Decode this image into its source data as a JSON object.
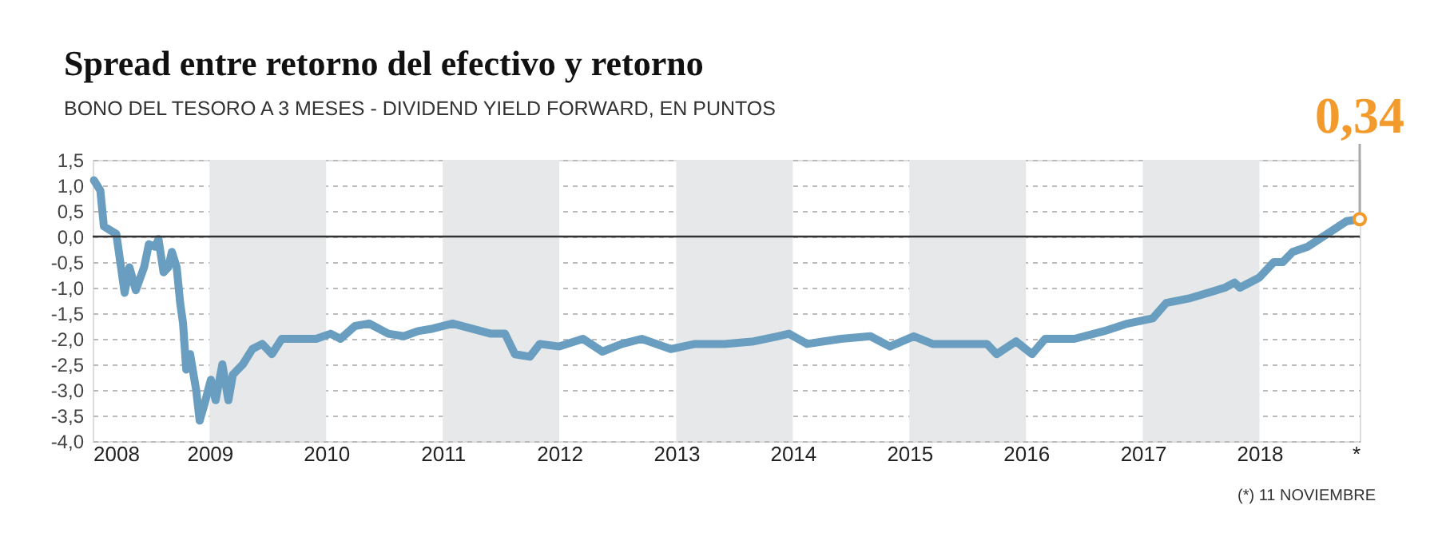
{
  "chart_data": {
    "type": "line",
    "title": "Spread entre retorno del efectivo y retorno",
    "subtitle": "BONO DEL TESORO A 3 MESES - DIVIDEND YIELD FORWARD, EN PUNTOS",
    "x": [
      "2008-01-05",
      "2008-01-25",
      "2008-02-05",
      "2008-03-15",
      "2008-04-10",
      "2008-04-25",
      "2008-05-15",
      "2008-06-10",
      "2008-06-25",
      "2008-07-15",
      "2008-07-25",
      "2008-08-10",
      "2008-08-25",
      "2008-09-05",
      "2008-09-20",
      "2008-10-01",
      "2008-10-10",
      "2008-10-20",
      "2008-11-01",
      "2008-11-20",
      "2008-12-01",
      "2008-12-15",
      "2009-01-05",
      "2009-01-20",
      "2009-02-10",
      "2009-03-01",
      "2009-03-15",
      "2009-04-15",
      "2009-05-15",
      "2009-06-15",
      "2009-07-15",
      "2009-08-15",
      "2009-10-01",
      "2009-12-01",
      "2010-01-15",
      "2010-02-15",
      "2010-04-01",
      "2010-05-15",
      "2010-07-15",
      "2010-09-01",
      "2010-10-15",
      "2010-12-01",
      "2011-02-01",
      "2011-04-01",
      "2011-06-01",
      "2011-07-15",
      "2011-08-15",
      "2011-10-01",
      "2011-11-01",
      "2012-01-01",
      "2012-03-15",
      "2012-05-15",
      "2012-07-15",
      "2012-09-15",
      "2012-12-15",
      "2013-03-01",
      "2013-06-01",
      "2013-09-01",
      "2013-11-15",
      "2013-12-20",
      "2014-02-15",
      "2014-06-01",
      "2014-09-01",
      "2014-11-01",
      "2015-01-15",
      "2015-03-15",
      "2015-06-01",
      "2015-09-01",
      "2015-10-01",
      "2015-12-01",
      "2016-01-20",
      "2016-03-01",
      "2016-06-01",
      "2016-09-01",
      "2016-11-15",
      "2017-02-01",
      "2017-03-15",
      "2017-06-01",
      "2017-09-15",
      "2017-10-15",
      "2017-11-01",
      "2018-01-01",
      "2018-02-15",
      "2018-03-15",
      "2018-04-15",
      "2018-06-01",
      "2018-08-01",
      "2018-10-01",
      "2018-11-11"
    ],
    "series": [
      {
        "color": "#6a9ec0",
        "values": [
          1.1,
          0.9,
          0.2,
          0.05,
          -1.1,
          -0.6,
          -1.05,
          -0.6,
          -0.15,
          -0.2,
          -0.05,
          -0.7,
          -0.6,
          -0.3,
          -0.6,
          -1.3,
          -1.7,
          -2.6,
          -2.3,
          -3.0,
          -3.6,
          -3.3,
          -2.8,
          -3.2,
          -2.5,
          -3.2,
          -2.7,
          -2.5,
          -2.2,
          -2.1,
          -2.3,
          -2.0,
          -2.0,
          -2.0,
          -1.9,
          -2.0,
          -1.75,
          -1.7,
          -1.9,
          -1.95,
          -1.85,
          -1.8,
          -1.7,
          -1.8,
          -1.9,
          -1.9,
          -2.3,
          -2.35,
          -2.1,
          -2.15,
          -2.0,
          -2.25,
          -2.1,
          -2.0,
          -2.2,
          -2.1,
          -2.1,
          -2.05,
          -1.95,
          -1.9,
          -2.1,
          -2.0,
          -1.95,
          -2.15,
          -1.95,
          -2.1,
          -2.1,
          -2.1,
          -2.3,
          -2.05,
          -2.3,
          -2.0,
          -2.0,
          -1.85,
          -1.7,
          -1.6,
          -1.3,
          -1.2,
          -1.0,
          -0.9,
          -1.0,
          -0.8,
          -0.5,
          -0.5,
          -0.3,
          -0.2,
          0.05,
          0.3,
          0.34
        ]
      }
    ],
    "xlim": [
      "2008-01-01",
      "2018-11-11"
    ],
    "xticks": [
      {
        "value": "2008",
        "label": "2008"
      },
      {
        "value": "2009",
        "label": "2009"
      },
      {
        "value": "2010",
        "label": "2010"
      },
      {
        "value": "2011",
        "label": "2011"
      },
      {
        "value": "2012",
        "label": "2012"
      },
      {
        "value": "2013",
        "label": "2013"
      },
      {
        "value": "2014",
        "label": "2014"
      },
      {
        "value": "2015",
        "label": "2015"
      },
      {
        "value": "2016",
        "label": "2016"
      },
      {
        "value": "2017",
        "label": "2017"
      },
      {
        "value": "2018",
        "label": "2018"
      },
      {
        "value": "2018-11-11",
        "label": "*"
      }
    ],
    "ylim": [
      -4.0,
      1.5
    ],
    "yticks": [
      {
        "value": 1.5,
        "label": "1,5"
      },
      {
        "value": 1.0,
        "label": "1,0"
      },
      {
        "value": 0.5,
        "label": "0,5"
      },
      {
        "value": 0,
        "label": "0,0"
      },
      {
        "value": -0.5,
        "label": "-0,5"
      },
      {
        "value": -1.0,
        "label": "-1,0"
      },
      {
        "value": -1.5,
        "label": "-1,5"
      },
      {
        "value": -2.0,
        "label": "-2,0"
      },
      {
        "value": -2.5,
        "label": "-2,5"
      },
      {
        "value": -3.0,
        "label": "-3,0"
      },
      {
        "value": -3.5,
        "label": "-3,5"
      },
      {
        "value": -4.0,
        "label": "-4,0"
      }
    ],
    "grid": "y",
    "marker": "none",
    "line_style": "solid",
    "ref_lines": [
      {
        "axis": "y",
        "value": 0,
        "color": "#333333"
      }
    ],
    "bands": [
      {
        "axis": "x",
        "from": "2009",
        "to": "2010",
        "color": "#e6e8e9"
      },
      {
        "axis": "x",
        "from": "2011",
        "to": "2012",
        "color": "#e6e8e9"
      },
      {
        "axis": "x",
        "from": "2013",
        "to": "2014",
        "color": "#e6e8e9"
      },
      {
        "axis": "x",
        "from": "2015",
        "to": "2016",
        "color": "#e6e8e9"
      },
      {
        "axis": "x",
        "from": "2017",
        "to": "2018",
        "color": "#e6e8e9"
      }
    ],
    "annotations": [
      {
        "text": "0,34",
        "x": "2018-11-11",
        "y": 0.34
      },
      "(*) 11 NOVIEMBRE"
    ]
  }
}
